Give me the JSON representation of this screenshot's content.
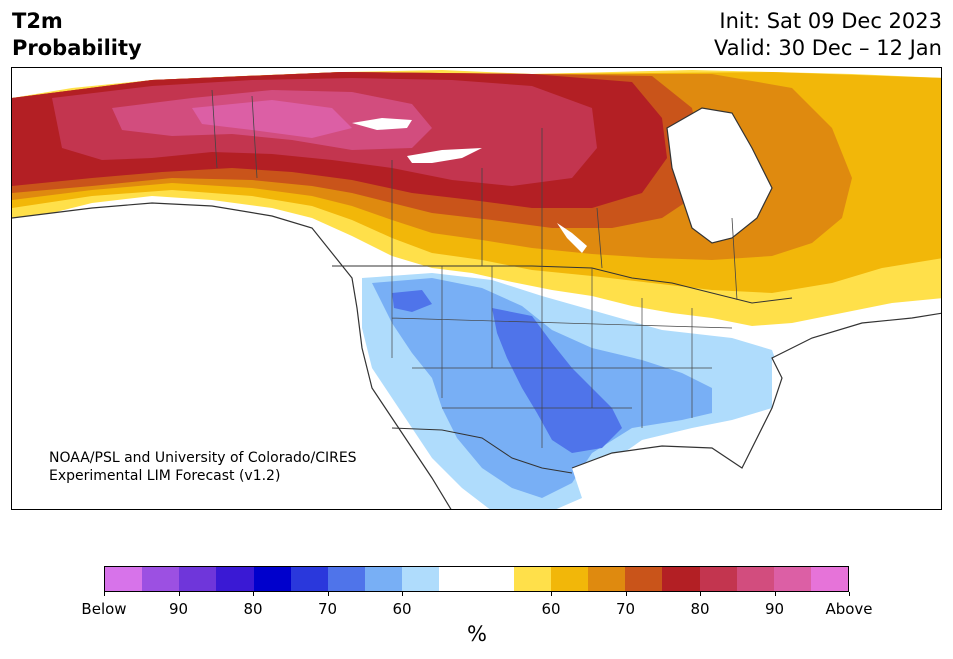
{
  "header": {
    "title_line1": "T2m",
    "title_line2": "Probability",
    "init": "Init: Sat 09 Dec 2023",
    "valid": "Valid: 30 Dec – 12 Jan"
  },
  "credit": {
    "line1": "NOAA/PSL and University of Colorado/CIRES",
    "line2": "Experimental LIM Forecast (v1.2)"
  },
  "colorbar": {
    "colors": [
      "#d773ea",
      "#9c50e2",
      "#6f36da",
      "#3a19d4",
      "#0000cc",
      "#2a38dc",
      "#4f74ea",
      "#78aff5",
      "#afdcfc",
      "#ffffff",
      "#ffffff",
      "#ffe04a",
      "#f2b709",
      "#df8a0f",
      "#c9541a",
      "#b31f24",
      "#c3354f",
      "#d24d7e",
      "#dc5fa5",
      "#e673d9"
    ],
    "ticks": [
      "Below",
      "90",
      "80",
      "70",
      "60",
      "60",
      "70",
      "80",
      "90",
      "Above"
    ],
    "unit": "%"
  },
  "legend_colors": {
    "below_60_70": "#afdcfc",
    "below_70_80": "#78aff5",
    "below_80_90": "#4f74ea",
    "above_60_70": "#ffe04a",
    "above_70_80": "#f2b709",
    "above_80_90": "#df8a0f",
    "above_90": "#c9541a",
    "above_strong": "#b31f24",
    "above_max1": "#c3354f",
    "above_max2": "#dc5fa5"
  }
}
